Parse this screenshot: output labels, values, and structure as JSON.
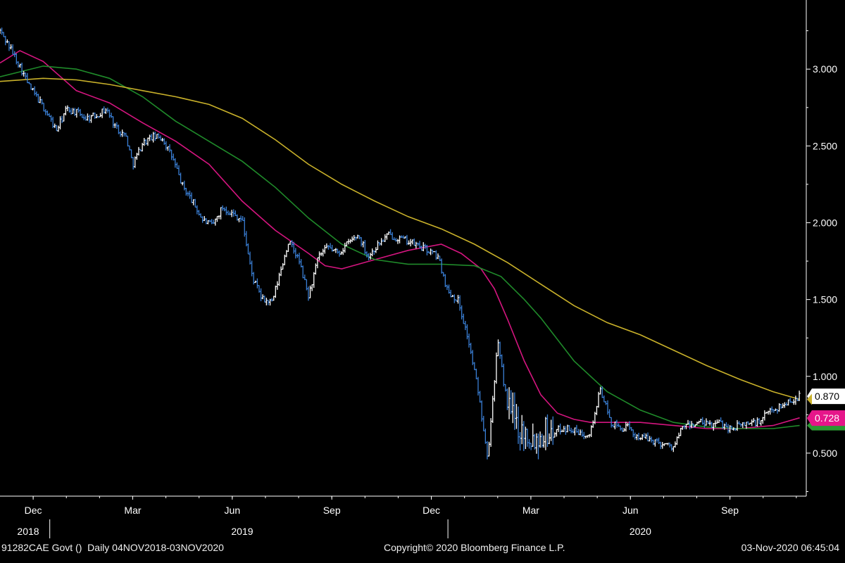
{
  "footer": {
    "security": "91282CAE Govt ()",
    "range": "Daily 04NOV2018-03NOV2020",
    "copyright": "Copyright© 2020 Bloomberg Finance L.P.",
    "timestamp": "03-Nov-2020 06:45:04"
  },
  "colors": {
    "background": "#000000",
    "axis": "#ffffff",
    "price_up": "#ffffff",
    "price_down": "#3a7fd5",
    "ma_short": "#d4157f",
    "ma_mid": "#1f8a2a",
    "ma_long": "#c9b12a",
    "last_price_label": "#ffffff",
    "ma_short_label": "#e6168a",
    "ma_mid_label": "#2a9a32"
  },
  "chart_data": {
    "type": "line",
    "y_ticks": [
      "3.000",
      "2.500",
      "2.000",
      "1.500",
      "1.000",
      "0.500"
    ],
    "y_tick_values": [
      3.0,
      2.5,
      2.0,
      1.5,
      1.0,
      0.5
    ],
    "ylim": [
      0.22,
      3.45
    ],
    "x_month_ticks": [
      "Dec",
      "Mar",
      "Jun",
      "Sep",
      "Dec",
      "Mar",
      "Jun",
      "Sep"
    ],
    "x_month_positions": [
      0.7,
      3.7,
      6.7,
      9.7,
      12.7,
      15.7,
      18.7,
      21.7
    ],
    "x_year_labels": [
      "2018",
      "2019",
      "2020"
    ],
    "x_year_positions": [
      0.0,
      7.0,
      19.0
    ],
    "xlim": [
      -0.3,
      24.0
    ],
    "last_labels": [
      {
        "text": "0.870",
        "value": 0.87,
        "color": "#ffffff"
      },
      {
        "text": "0.728",
        "value": 0.728,
        "color": "#e6168a"
      }
    ],
    "series": [
      {
        "kind": "price",
        "x": [
          -0.3,
          0.0,
          0.3,
          0.6,
          0.8,
          1.1,
          1.4,
          1.7,
          2.0,
          2.3,
          2.6,
          2.9,
          3.2,
          3.5,
          3.7,
          4.0,
          4.3,
          4.6,
          4.9,
          5.2,
          5.5,
          5.8,
          6.1,
          6.4,
          6.7,
          7.0,
          7.3,
          7.6,
          7.9,
          8.2,
          8.4,
          8.7,
          9.0,
          9.3,
          9.6,
          9.9,
          10.2,
          10.5,
          10.8,
          11.1,
          11.4,
          11.7,
          12.0,
          12.3,
          12.6,
          12.9,
          13.2,
          13.5,
          13.8,
          14.1,
          14.4,
          14.7,
          15.0,
          15.2,
          15.4,
          15.6,
          15.8,
          15.95,
          16.1,
          16.3,
          16.6,
          16.9,
          17.2,
          17.5,
          17.8,
          18.1,
          18.4,
          18.6,
          18.8,
          19.1,
          19.4,
          19.7,
          20.0,
          20.3,
          20.5,
          20.8,
          21.1,
          21.4,
          21.7,
          22.0,
          22.3,
          22.6,
          22.9,
          23.2,
          23.5,
          23.8
        ],
        "values": [
          3.25,
          3.14,
          3.02,
          2.88,
          2.82,
          2.72,
          2.6,
          2.74,
          2.72,
          2.68,
          2.7,
          2.74,
          2.62,
          2.56,
          2.38,
          2.52,
          2.56,
          2.55,
          2.42,
          2.24,
          2.14,
          2.02,
          1.98,
          2.1,
          2.06,
          2.02,
          1.65,
          1.5,
          1.48,
          1.72,
          1.88,
          1.76,
          1.52,
          1.78,
          1.84,
          1.8,
          1.87,
          1.92,
          1.78,
          1.86,
          1.92,
          1.9,
          1.88,
          1.85,
          1.82,
          1.78,
          1.55,
          1.5,
          1.25,
          0.92,
          0.48,
          1.22,
          0.8,
          0.72,
          0.66,
          0.62,
          0.6,
          0.6,
          0.65,
          0.63,
          0.66,
          0.66,
          0.62,
          0.64,
          0.92,
          0.7,
          0.66,
          0.67,
          0.62,
          0.6,
          0.58,
          0.56,
          0.54,
          0.68,
          0.68,
          0.7,
          0.68,
          0.7,
          0.66,
          0.68,
          0.7,
          0.7,
          0.78,
          0.8,
          0.84,
          0.87
        ]
      },
      {
        "kind": "ma",
        "color": "#d4157f",
        "x": [
          -0.3,
          0.3,
          1.0,
          2.0,
          3.0,
          4.0,
          5.0,
          6.0,
          7.0,
          8.0,
          9.0,
          9.5,
          10.0,
          11.0,
          12.0,
          13.0,
          13.6,
          14.2,
          14.6,
          15.0,
          15.5,
          16.0,
          16.5,
          17.0,
          17.5,
          18.0,
          19.0,
          20.0,
          21.0,
          22.0,
          23.0,
          23.8
        ],
        "values": [
          3.04,
          3.12,
          3.05,
          2.86,
          2.78,
          2.65,
          2.53,
          2.38,
          2.14,
          1.95,
          1.8,
          1.72,
          1.7,
          1.76,
          1.82,
          1.86,
          1.8,
          1.7,
          1.57,
          1.37,
          1.1,
          0.88,
          0.76,
          0.72,
          0.7,
          0.7,
          0.7,
          0.68,
          0.66,
          0.66,
          0.68,
          0.73
        ]
      },
      {
        "kind": "ma",
        "color": "#1f8a2a",
        "x": [
          -0.3,
          1.0,
          2.0,
          3.0,
          4.0,
          5.0,
          6.0,
          7.0,
          8.0,
          9.0,
          10.0,
          11.0,
          12.0,
          13.0,
          14.0,
          14.8,
          15.5,
          16.0,
          17.0,
          18.0,
          19.0,
          20.0,
          21.0,
          22.0,
          23.0,
          23.8
        ],
        "values": [
          2.95,
          3.02,
          3.0,
          2.94,
          2.82,
          2.66,
          2.53,
          2.4,
          2.23,
          2.03,
          1.86,
          1.76,
          1.73,
          1.73,
          1.72,
          1.65,
          1.5,
          1.38,
          1.1,
          0.9,
          0.78,
          0.7,
          0.67,
          0.66,
          0.66,
          0.68
        ]
      },
      {
        "kind": "ma",
        "color": "#c9b12a",
        "x": [
          -0.3,
          1.0,
          2.0,
          3.0,
          4.0,
          5.0,
          6.0,
          7.0,
          8.0,
          9.0,
          10.0,
          11.0,
          12.0,
          13.0,
          14.0,
          15.0,
          16.0,
          17.0,
          18.0,
          19.0,
          20.0,
          21.0,
          22.0,
          23.0,
          23.8
        ],
        "values": [
          2.92,
          2.94,
          2.93,
          2.9,
          2.86,
          2.82,
          2.77,
          2.68,
          2.54,
          2.38,
          2.25,
          2.14,
          2.04,
          1.96,
          1.86,
          1.74,
          1.6,
          1.46,
          1.35,
          1.27,
          1.17,
          1.07,
          0.98,
          0.9,
          0.85
        ]
      }
    ]
  }
}
